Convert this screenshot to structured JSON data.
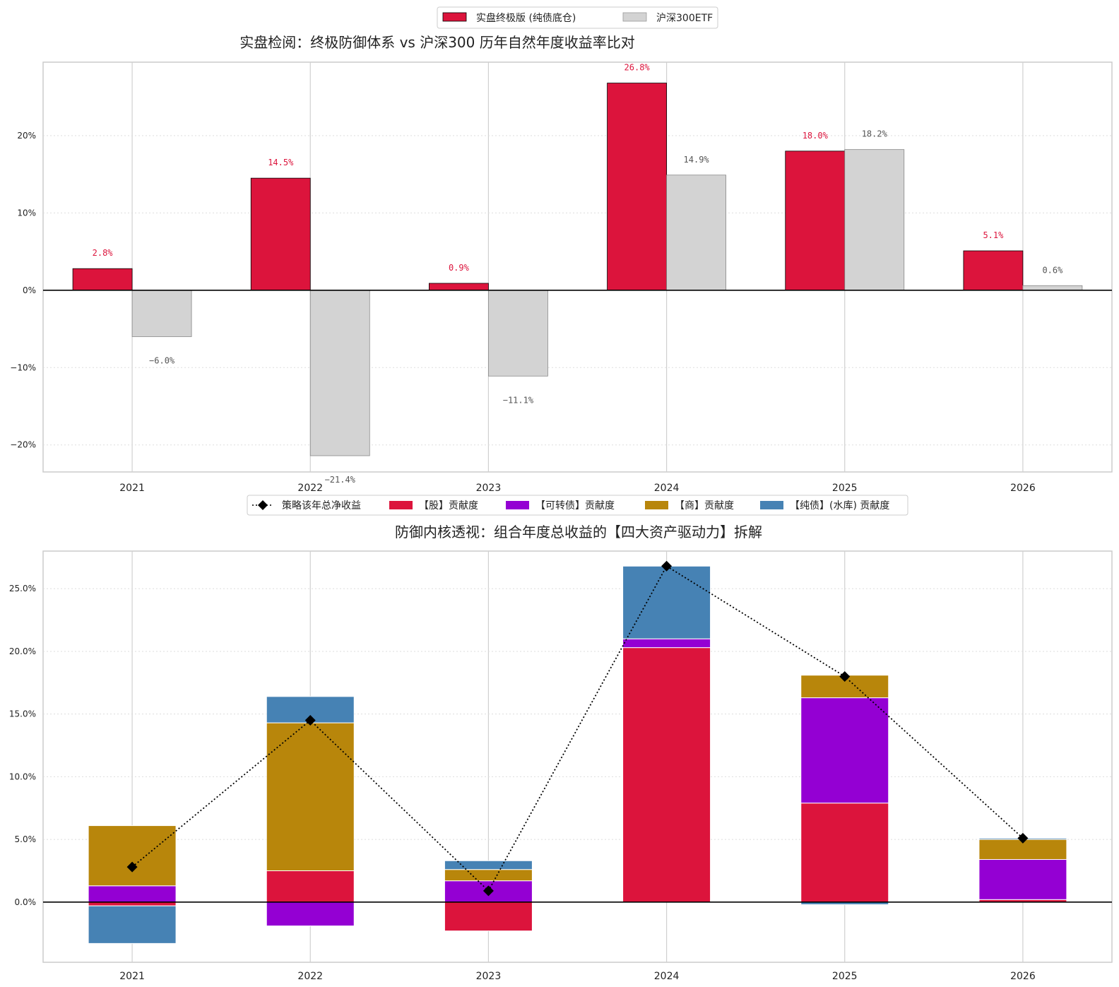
{
  "chart_data": [
    {
      "type": "bar",
      "title": "实盘检阅：终极防御体系 vs 沪深300 历年自然年度收益率比对",
      "categories": [
        "2021",
        "2022",
        "2023",
        "2024",
        "2025",
        "2026"
      ],
      "ylim": [
        -23.5,
        29.5
      ],
      "yticks": [
        -20,
        -10,
        0,
        10,
        20
      ],
      "ytick_labels": [
        "−20%",
        "−10%",
        "0%",
        "10%",
        "20%"
      ],
      "grid": true,
      "legend_position": "top-center",
      "series": [
        {
          "name": "实盘终极版 (纯债底仓)",
          "color": "#DC143C",
          "values": [
            2.8,
            14.5,
            0.9,
            26.8,
            18.0,
            5.1
          ],
          "labels": [
            "2.8%",
            "14.5%",
            "0.9%",
            "26.8%",
            "18.0%",
            "5.1%"
          ]
        },
        {
          "name": "沪深300ETF",
          "color": "#D3D3D3",
          "label_color": "#555555",
          "values": [
            -6.0,
            -21.4,
            -11.1,
            14.9,
            18.2,
            0.6
          ],
          "labels": [
            "−6.0%",
            "−21.4%",
            "−11.1%",
            "14.9%",
            "18.2%",
            "0.6%"
          ]
        }
      ]
    },
    {
      "type": "bar",
      "stacked": true,
      "title": "防御内核透视：组合年度总收益的【四大资产驱动力】拆解",
      "categories": [
        "2021",
        "2022",
        "2023",
        "2024",
        "2025",
        "2026"
      ],
      "ylim": [
        -4.8,
        28.0
      ],
      "yticks": [
        0,
        5,
        10,
        15,
        20,
        25
      ],
      "ytick_labels": [
        "0.0%",
        "5.0%",
        "10.0%",
        "15.0%",
        "20.0%",
        "25.0%"
      ],
      "grid": true,
      "legend_position": "top-center",
      "line": {
        "name": "策略该年总净收益",
        "color": "#000000",
        "values": [
          2.8,
          14.5,
          0.9,
          26.8,
          18.0,
          5.1
        ]
      },
      "series": [
        {
          "name": "【股】贡献度",
          "color": "#DC143C",
          "values": [
            -0.3,
            2.5,
            -2.3,
            20.3,
            7.9,
            0.2
          ]
        },
        {
          "name": "【可转债】贡献度",
          "color": "#9400D3",
          "values": [
            1.3,
            -1.9,
            1.7,
            0.7,
            8.4,
            3.2
          ]
        },
        {
          "name": "【商】贡献度",
          "color": "#B8860B",
          "values": [
            4.8,
            11.8,
            0.9,
            0.0,
            1.8,
            1.6
          ]
        },
        {
          "name": "【纯债】(水库) 贡献度",
          "color": "#4682B4",
          "values": [
            -3.0,
            2.1,
            0.7,
            5.8,
            -0.2,
            0.1
          ]
        }
      ]
    }
  ]
}
